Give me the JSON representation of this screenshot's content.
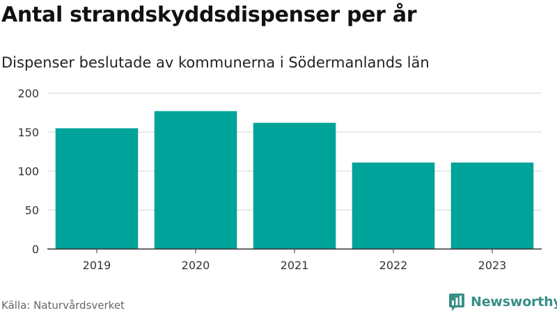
{
  "header": {
    "title": "Antal strandskyddsdispenser per år",
    "subtitle": "Dispenser beslutade av kommunerna i Södermanlands län"
  },
  "footer": {
    "source": "Källa: Naturvårdsverket",
    "brand": "Newsworthy"
  },
  "colors": {
    "bar": "#00a39a",
    "brand": "#3a8f86"
  },
  "chart_data": {
    "type": "bar",
    "title": "Antal strandskyddsdispenser per år",
    "subtitle": "Dispenser beslutade av kommunerna i Södermanlands län",
    "categories": [
      "2019",
      "2020",
      "2021",
      "2022",
      "2023"
    ],
    "values": [
      155,
      177,
      162,
      111,
      111
    ],
    "xlabel": "",
    "ylabel": "",
    "ylim": [
      0,
      200
    ],
    "yticks": [
      0,
      50,
      100,
      150,
      200
    ],
    "grid": true,
    "legend": "none"
  }
}
